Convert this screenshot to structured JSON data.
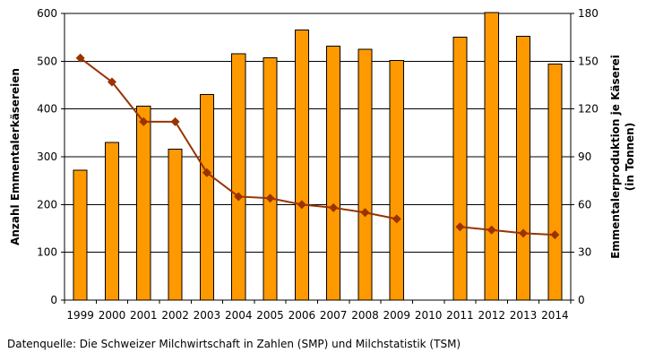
{
  "chart_data": {
    "type": "bar+line",
    "categories": [
      "1999",
      "2000",
      "2001",
      "2002",
      "2003",
      "2004",
      "2005",
      "2006",
      "2007",
      "2008",
      "2009",
      "2010",
      "2011",
      "2012",
      "2013",
      "2014"
    ],
    "series": [
      {
        "type": "bar",
        "axis": "left",
        "color": "#FF9900",
        "values": [
          272,
          330,
          406,
          316,
          430,
          516,
          507,
          565,
          532,
          525,
          502,
          null,
          550,
          602,
          552,
          494
        ]
      },
      {
        "type": "line",
        "axis": "right",
        "color": "#993300",
        "values": [
          152,
          137,
          112,
          112,
          80,
          65,
          64,
          60,
          58,
          55,
          51,
          null,
          46,
          44,
          42,
          41
        ]
      }
    ],
    "y_left": {
      "label": "Anzahl Emmentalerkäsereien",
      "min": 0,
      "max": 600,
      "ticks": [
        0,
        100,
        200,
        300,
        400,
        500,
        600
      ]
    },
    "y_right": {
      "label_line1": "Emmentalerproduktion je Käserei",
      "label_line2": "(in Tonnen)",
      "min": 0,
      "max": 180,
      "ticks": [
        0,
        30,
        60,
        90,
        120,
        150,
        180
      ]
    },
    "grid": true
  },
  "source": "Datenquelle: Die Schweizer Milchwirtschaft in Zahlen (SMP) und Milchstatistik (TSM)"
}
